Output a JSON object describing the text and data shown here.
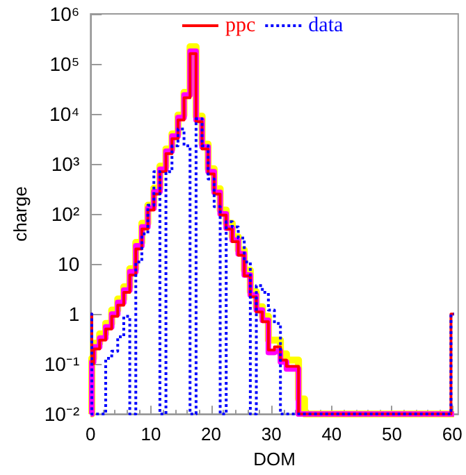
{
  "chart_data": {
    "type": "histogram",
    "xlabel": "DOM",
    "ylabel": "charge",
    "bins": [
      0,
      0.2,
      0.5,
      1.5,
      2.5,
      3.5,
      4.5,
      5.5,
      6.5,
      7.5,
      8.5,
      9.5,
      10.5,
      11.5,
      12.5,
      13.5,
      14.5,
      15.5,
      16.5,
      17.5,
      18.5,
      19.5,
      20.5,
      21.5,
      22.5,
      23.5,
      24.5,
      25.5,
      26.5,
      27.5,
      28.5,
      29.5,
      30.5,
      31.5,
      32.5,
      33.5,
      34.5,
      35.5,
      59.8,
      60.3
    ],
    "series": [
      {
        "color": "#ffff00",
        "values": [
          null,
          0.13,
          0.26,
          0.4,
          0.65,
          1.2,
          2,
          3.5,
          8,
          27,
          65,
          150,
          330,
          900,
          2000,
          4000,
          9500,
          27000,
          220000,
          9000,
          2500,
          800,
          320,
          120,
          65,
          35,
          19,
          7.5,
          2.8,
          1.4,
          0.9,
          0.3,
          0.3,
          0.16,
          0.12,
          0.12,
          0.02,
          null,
          null
        ]
      },
      {
        "color": "#ff00ff",
        "values": [
          null,
          0.11,
          0.22,
          0.33,
          0.55,
          1,
          1.7,
          3,
          7,
          23,
          55,
          130,
          280,
          780,
          1800,
          3600,
          8500,
          24000,
          180000,
          7600,
          2200,
          700,
          270,
          100,
          52,
          30,
          16,
          6,
          2.4,
          1.2,
          0.75,
          0.17,
          0.18,
          0.11,
          0.08,
          0.08,
          null,
          null,
          null
        ]
      },
      {
        "name": "ppc",
        "color": "#ff0000",
        "line_style": "solid",
        "values": [
          1,
          0.1,
          0.2,
          0.3,
          0.5,
          0.9,
          1.5,
          2.7,
          6,
          20,
          50,
          120,
          250,
          700,
          1600,
          3200,
          7600,
          21000,
          160000,
          7000,
          2000,
          630,
          250,
          95,
          50,
          28,
          15,
          5.8,
          2.2,
          1.1,
          0.7,
          0.19,
          0.22,
          0.12,
          0.09,
          0.09,
          null,
          null,
          1
        ]
      },
      {
        "name": "data",
        "color": "#0000ff",
        "line_style": "dotted",
        "values": [
          1,
          null,
          null,
          null,
          0.13,
          0.18,
          0.35,
          0.9,
          null,
          11,
          40,
          150,
          700,
          null,
          700,
          2300,
          5000,
          2300,
          null,
          8000,
          2300,
          500,
          140,
          null,
          70,
          55,
          33,
          11,
          null,
          3.7,
          2.7,
          1.2,
          0.65,
          null,
          null,
          null,
          null,
          null,
          1
        ]
      }
    ],
    "xlim": [
      0,
      61
    ],
    "xticks": [
      0,
      10,
      20,
      30,
      40,
      50,
      60
    ],
    "log": "y",
    "ylim": [
      0.01,
      1000000
    ],
    "yticks": [
      {
        "value": 0.01,
        "label": "10⁻²"
      },
      {
        "value": 0.1,
        "label": "10⁻¹"
      },
      1,
      10,
      {
        "value": 100,
        "label": "10²"
      },
      {
        "value": 1000,
        "label": "10³"
      },
      {
        "value": 10000,
        "label": "10⁴"
      },
      {
        "value": 100000,
        "label": "10⁵"
      },
      {
        "value": 1000000,
        "label": "10⁶"
      }
    ],
    "grid": false,
    "legend": "top",
    "marker": "none"
  }
}
